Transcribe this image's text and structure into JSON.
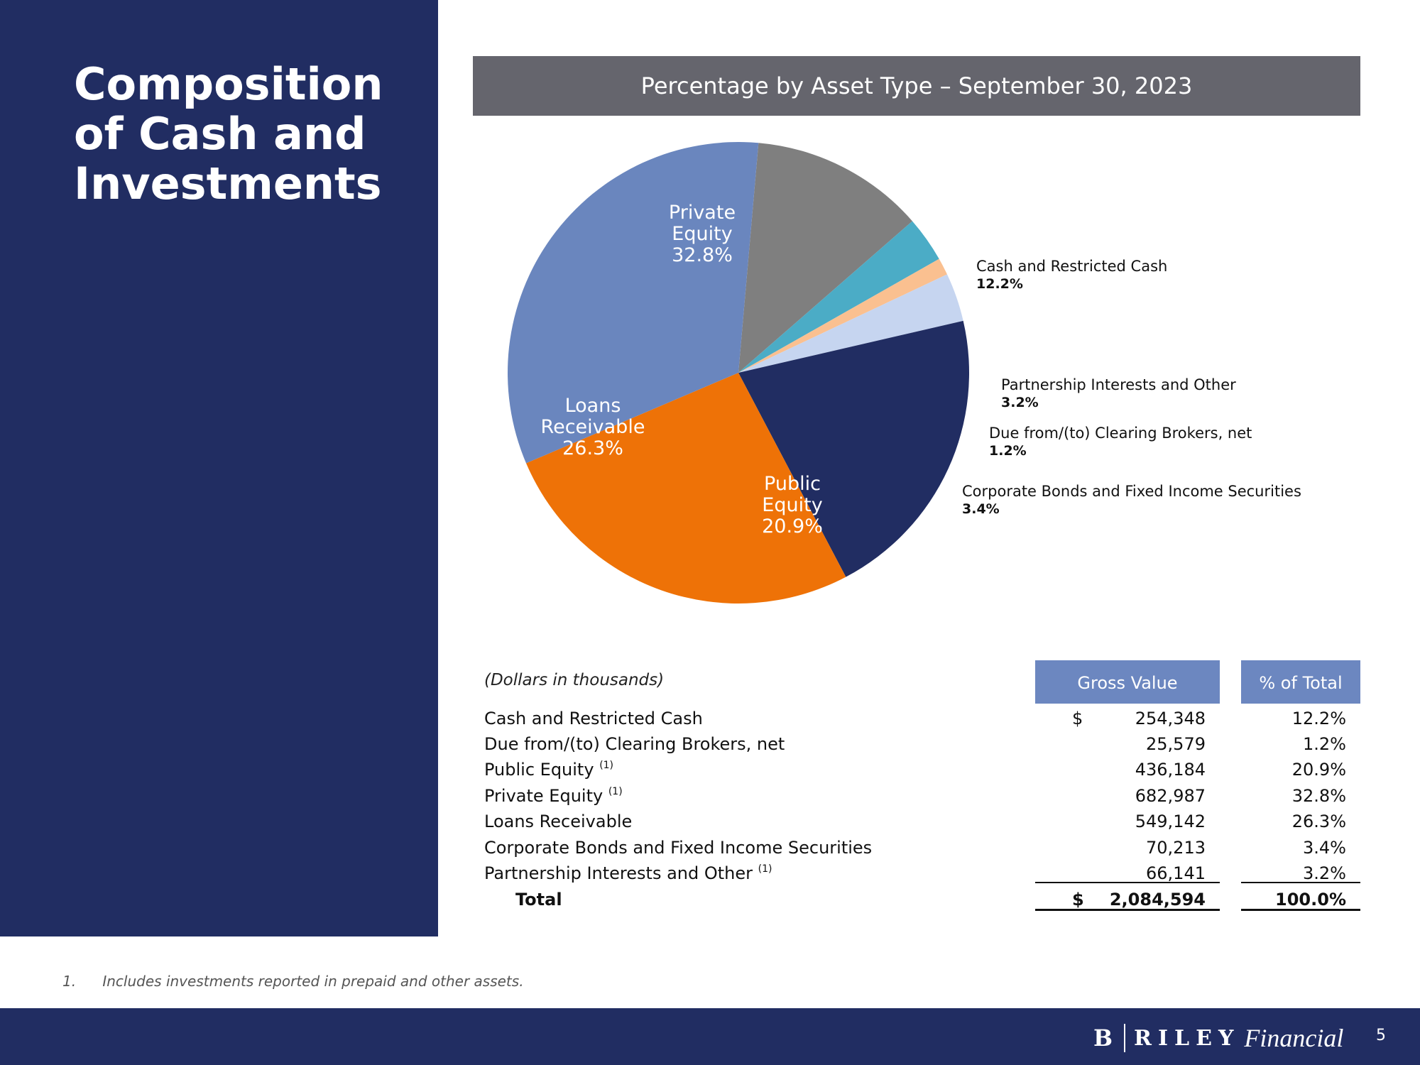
{
  "title_lines": [
    "Composition",
    "of Cash and",
    "Investments"
  ],
  "chart_header": "Percentage by Asset Type – September 30, 2023",
  "chart_data": {
    "type": "pie",
    "title": "Percentage by Asset Type – September 30, 2023",
    "unit": "%",
    "slices": [
      {
        "name": "Cash and Restricted Cash",
        "value": 12.2,
        "label": "12.2%",
        "color": "#7f7f7f"
      },
      {
        "name": "Partnership Interests and Other",
        "value": 3.2,
        "label": "3.2%",
        "color": "#4bacc6"
      },
      {
        "name": "Due from/(to) Clearing Brokers, net",
        "value": 1.2,
        "label": "1.2%",
        "color": "#fac090"
      },
      {
        "name": "Corporate Bonds and Fixed Income Securities",
        "value": 3.4,
        "label": "3.4%",
        "color": "#c6d5f0"
      },
      {
        "name": "Public Equity",
        "value": 20.9,
        "label": "20.9%",
        "color": "#212d62",
        "inside_lines": [
          "Public",
          "Equity",
          "20.9%"
        ]
      },
      {
        "name": "Loans Receivable",
        "value": 26.3,
        "label": "26.3%",
        "color": "#ee7207",
        "inside_lines": [
          "Loans",
          "Receivable",
          "26.3%"
        ]
      },
      {
        "name": "Private Equity",
        "value": 32.8,
        "label": "32.8%",
        "color": "#6a86be",
        "inside_lines": [
          "Private",
          "Equity",
          "32.8%"
        ]
      }
    ]
  },
  "outside_labels": {
    "cash": {
      "name": "Cash and Restricted Cash",
      "pct": "12.2%"
    },
    "partnership": {
      "name": "Partnership Interests and Other",
      "pct": "3.2%"
    },
    "due": {
      "name": "Due from/(to) Clearing Brokers, net",
      "pct": "1.2%"
    },
    "bonds": {
      "name": "Corporate Bonds and Fixed Income Securities",
      "pct": "3.4%"
    }
  },
  "table": {
    "note": "(Dollars in thousands)",
    "col_gross": "Gross Value",
    "col_pct": "% of Total",
    "currency": "$",
    "rows": [
      {
        "label": "Cash and Restricted Cash",
        "sup": "",
        "value": "254,348",
        "pct": "12.2%"
      },
      {
        "label": "Due from/(to) Clearing Brokers, net",
        "sup": "",
        "value": "25,579",
        "pct": "1.2%"
      },
      {
        "label": "Public Equity",
        "sup": "(1)",
        "value": "436,184",
        "pct": "20.9%"
      },
      {
        "label": "Private Equity",
        "sup": "(1)",
        "value": "682,987",
        "pct": "32.8%"
      },
      {
        "label": "Loans Receivable",
        "sup": "",
        "value": "549,142",
        "pct": "26.3%"
      },
      {
        "label": "Corporate Bonds and Fixed Income Securities",
        "sup": "",
        "value": "70,213",
        "pct": "3.4%"
      },
      {
        "label": "Partnership Interests and Other",
        "sup": "(1)",
        "value": "66,141",
        "pct": "3.2%"
      }
    ],
    "total": {
      "label": "Total",
      "value": "2,084,594",
      "pct": "100.0%"
    }
  },
  "footnote": {
    "num": "1.",
    "text": "Includes investments reported in prepaid and other assets."
  },
  "brand": {
    "b": "B",
    "riley": "RILEY",
    "financial": "Financial"
  },
  "page_number": "5"
}
